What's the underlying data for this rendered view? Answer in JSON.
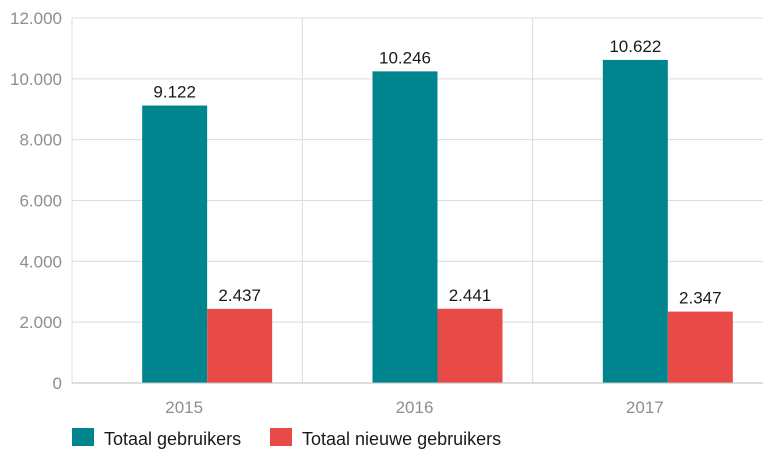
{
  "chart_data": {
    "type": "bar",
    "categories": [
      "2015",
      "2016",
      "2017"
    ],
    "series": [
      {
        "name": "Totaal gebruikers",
        "values": [
          9122,
          10246,
          10622
        ],
        "labels": [
          "9.122",
          "10.246",
          "10.622"
        ],
        "color": "#00858f"
      },
      {
        "name": "Totaal nieuwe gebruikers",
        "values": [
          2437,
          2441,
          2347
        ],
        "labels": [
          "2.437",
          "2.441",
          "2.347"
        ],
        "color": "#e84a47"
      }
    ],
    "y_ticks": [
      {
        "value": 0,
        "label": "0"
      },
      {
        "value": 2000,
        "label": "2.000"
      },
      {
        "value": 4000,
        "label": "4.000"
      },
      {
        "value": 6000,
        "label": "6.000"
      },
      {
        "value": 8000,
        "label": "8.000"
      },
      {
        "value": 10000,
        "label": "10.000"
      },
      {
        "value": 12000,
        "label": "12.000"
      }
    ],
    "ylim": [
      0,
      12000
    ],
    "grid": true,
    "legend": "bottom-left"
  }
}
